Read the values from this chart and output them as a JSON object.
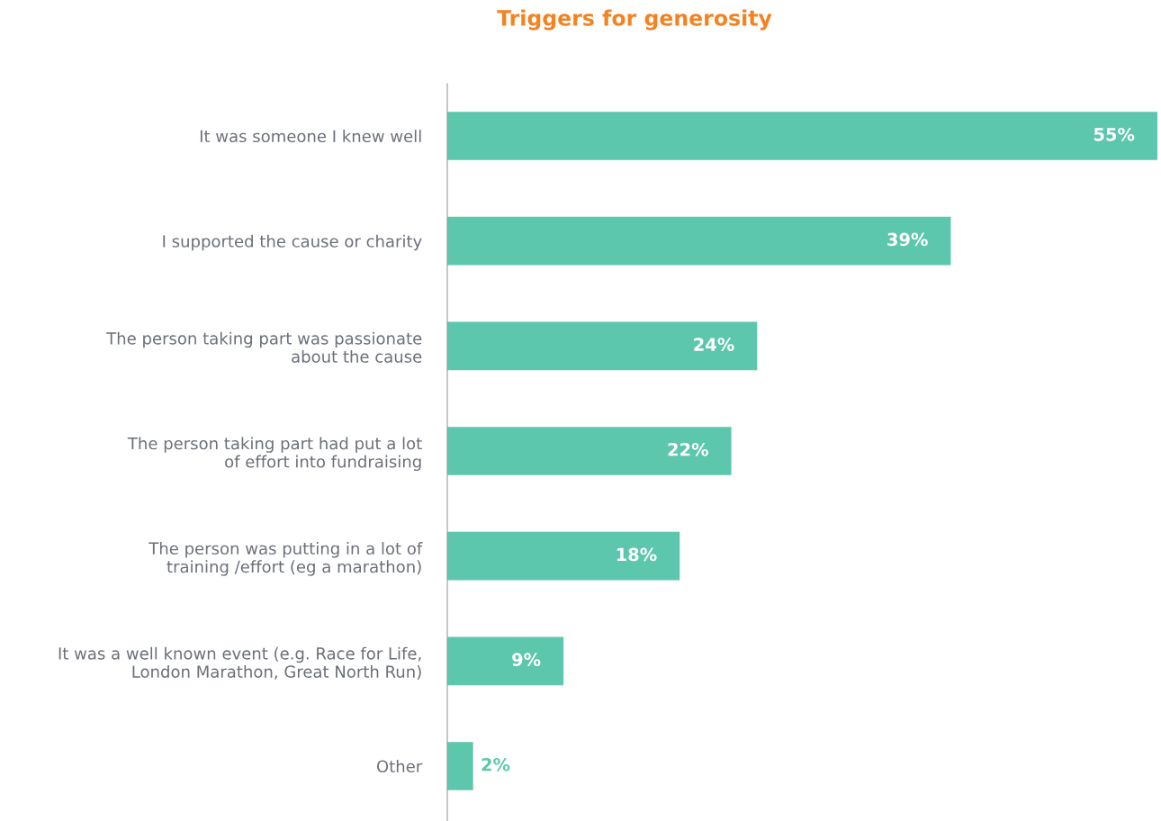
{
  "chart_data": {
    "type": "bar",
    "title": "Triggers for generosity",
    "orientation": "horizontal",
    "data_labels": true,
    "grid": false,
    "legend": false,
    "tick_labels": "y",
    "categories": [
      "It was someone I knew well",
      "I supported the cause or charity",
      "The person taking part was passionate\nabout the cause",
      "The person taking part had put a lot\nof effort into fundraising",
      "The person was putting in a lot of\ntraining /effort (eg a marathon)",
      "It was a well known event (e.g. Race for Life,\nLondon Marathon, Great North Run)",
      "Other"
    ],
    "values": [
      55,
      39,
      24,
      22,
      18,
      9,
      2
    ],
    "value_labels": [
      "55%",
      "39%",
      "24%",
      "22%",
      "18%",
      "9%",
      "2%"
    ],
    "color": "#5cc7ac"
  }
}
